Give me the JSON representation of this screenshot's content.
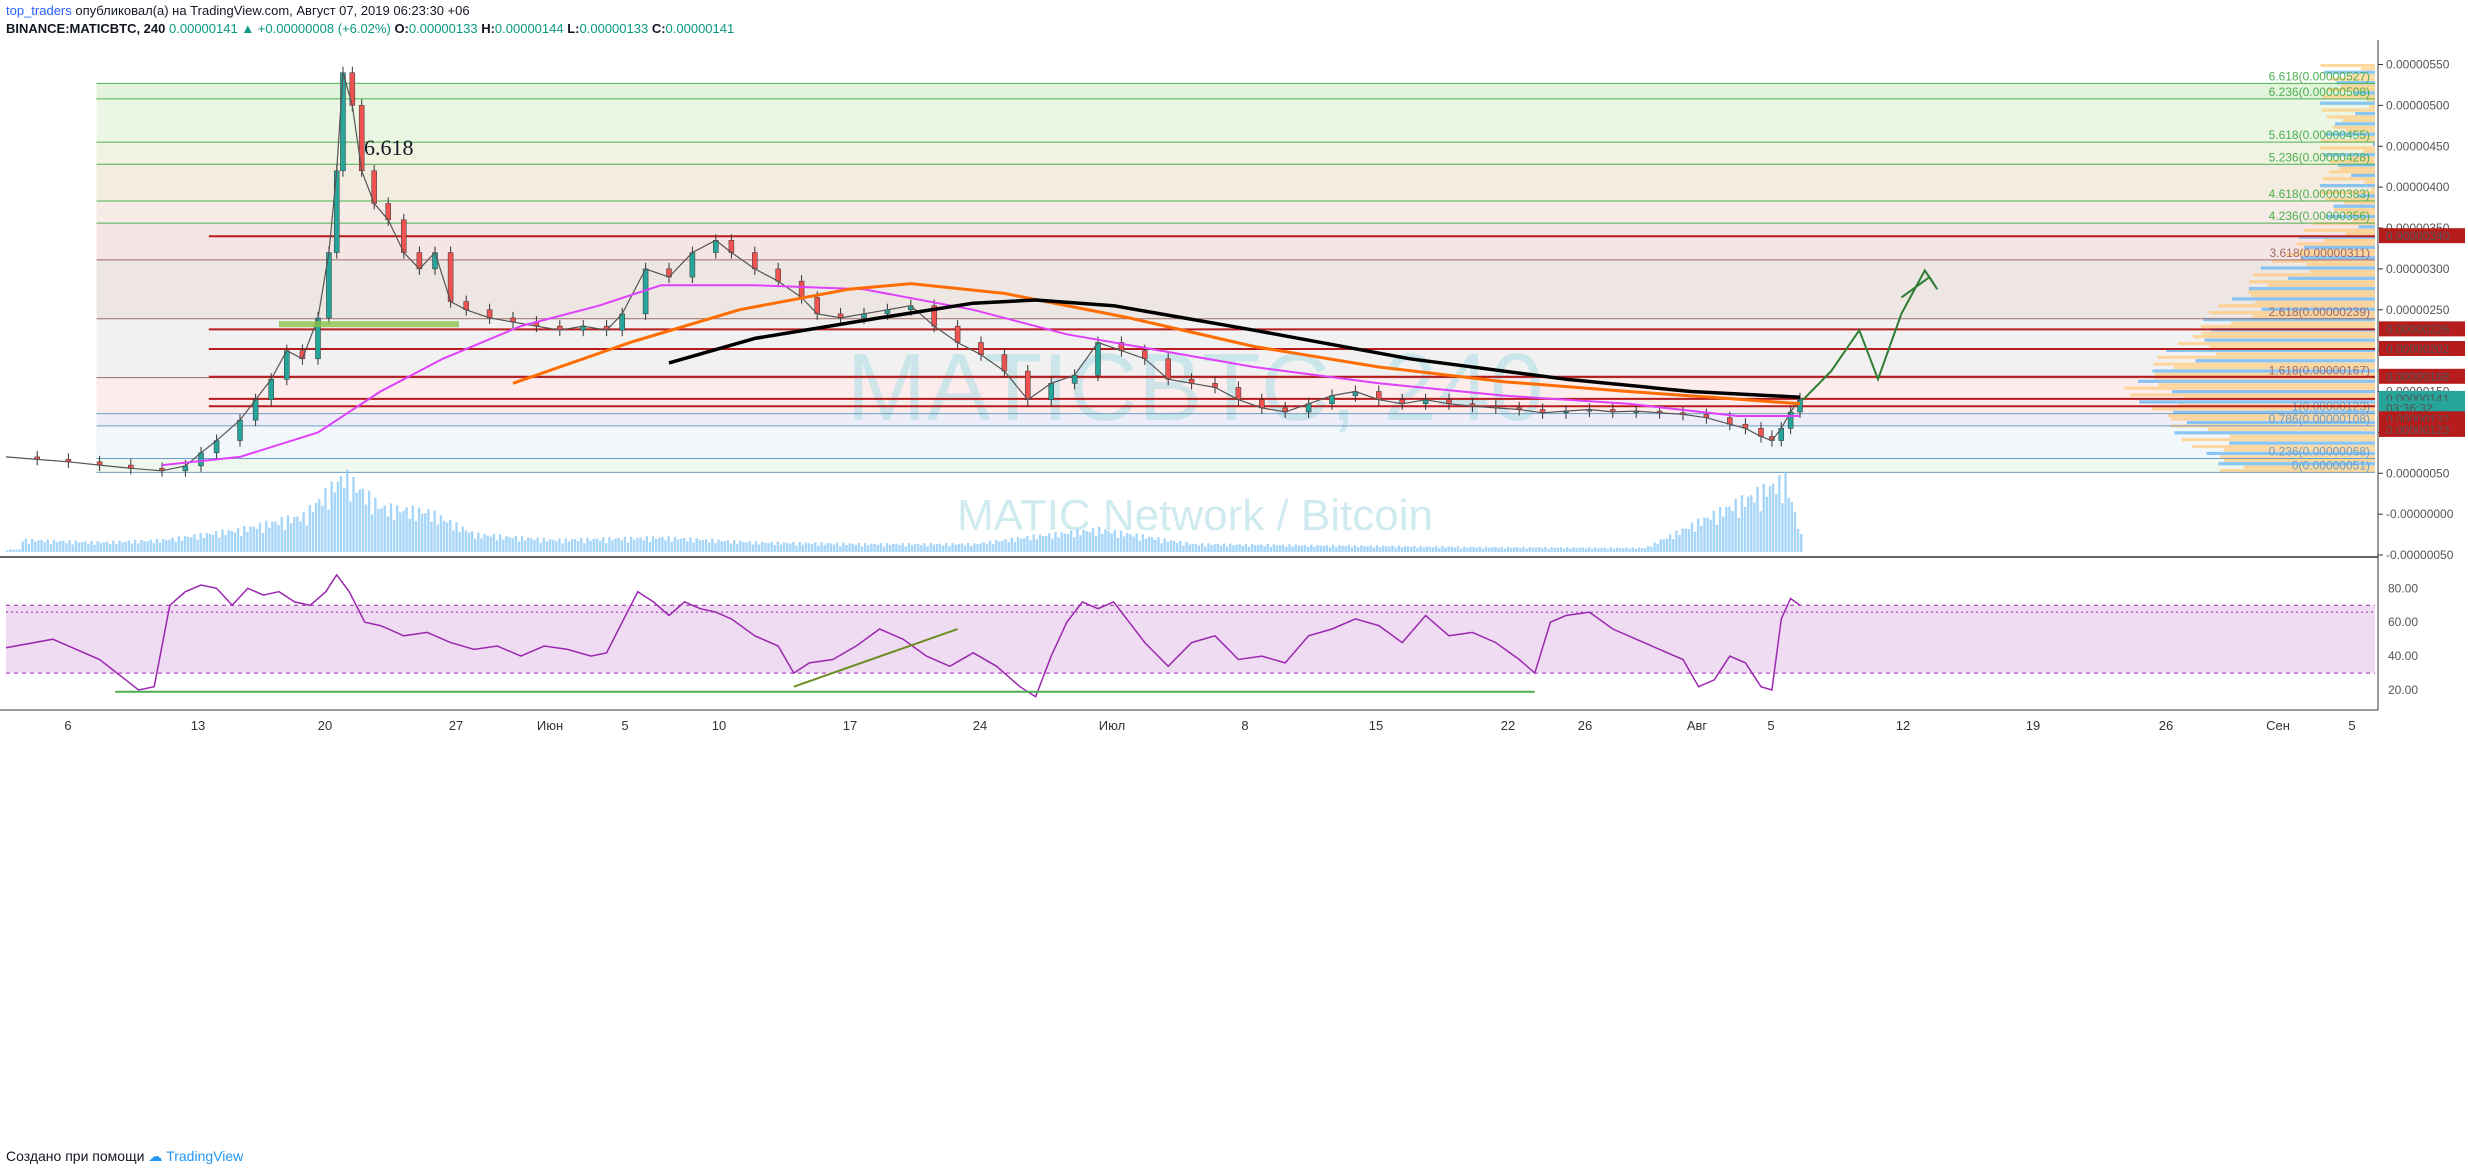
{
  "header": {
    "author": "top_traders",
    "published": "опубликовал(а) на TradingView.com, Август 07, 2019 06:23:30 +06",
    "symbol": "BINANCE:MATICBTC, 240",
    "last": "0.00000141",
    "change": "▲ +0.00000008 (+6.02%)",
    "o_label": "O:",
    "o": "0.00000133",
    "h_label": "H:",
    "h": "0.00000144",
    "l_label": "L:",
    "l": "0.00000133",
    "c_label": "C:",
    "c": "0.00000141"
  },
  "watermark": {
    "title": "MATICBTC, 240",
    "subtitle": "MATIC Network / Bitcoin"
  },
  "footer": {
    "text": "Создано при помощи",
    "brand": "TradingView"
  },
  "colors": {
    "up": "#26a69a",
    "down": "#ef5350",
    "rsi": "#9c27b0",
    "ema_orange": "#ff6d00",
    "ma_magenta": "#e040fb",
    "trend_black": "#000000",
    "fib_green": "#4caf50",
    "level_red": "#b71c1c"
  },
  "chart_data": [
    {
      "type": "line",
      "name": "price",
      "annotation": "6.618",
      "y_axis_ticks": [
        "0.00000550",
        "0.00000500",
        "0.00000450",
        "0.00000400",
        "0.00000350",
        "0.00000300",
        "0.00000250",
        "0.00000200",
        "0.00000150",
        "0.00000100",
        "0.00000050",
        "-0.00000000",
        "-0.00000050"
      ],
      "ylim": [
        -5e-07,
        5.8e-06
      ],
      "x_ticks": [
        "6",
        "13",
        "20",
        "27",
        "Июн",
        "5",
        "10",
        "17",
        "24",
        "Июл",
        "8",
        "15",
        "22",
        "26",
        "Авг",
        "5",
        "12",
        "19",
        "26",
        "Сен",
        "5"
      ],
      "fib_levels": [
        {
          "label": "6.618(0.00000527)",
          "value": 5.27e-06
        },
        {
          "label": "6.236(0.00000508)",
          "value": 5.08e-06
        },
        {
          "label": "5.618(0.00000455)",
          "value": 4.55e-06
        },
        {
          "label": "5.236(0.00000428)",
          "value": 4.28e-06
        },
        {
          "label": "4.618(0.00000383)",
          "value": 3.83e-06
        },
        {
          "label": "4.236(0.00000356)",
          "value": 3.56e-06
        },
        {
          "label": "3.618(0.00000311)",
          "value": 3.11e-06
        },
        {
          "label": "2.618(0.00000239)",
          "value": 2.39e-06
        },
        {
          "label": "1.618(0.00000167)",
          "value": 1.67e-06
        },
        {
          "label": "1(0.00000123)",
          "value": 1.23e-06
        },
        {
          "label": "0.786(0.00000108)",
          "value": 1.08e-06
        },
        {
          "label": "0.236(0.00000068)",
          "value": 6.8e-07
        },
        {
          "label": "0(0.00000051)",
          "value": 5.1e-07
        }
      ],
      "price_labels": [
        {
          "label": "0.00000340",
          "value": 3.4e-06
        },
        {
          "label": "0.00000226",
          "value": 2.26e-06
        },
        {
          "label": "0.00000202",
          "value": 2.02e-06
        },
        {
          "label": "0.00000168",
          "value": 1.68e-06
        },
        {
          "label": "0.00000141",
          "value": 1.41e-06
        },
        {
          "label": "03:36:32",
          "value": 1.29e-06
        },
        {
          "label": "0.00000132",
          "value": 1.16e-06
        },
        {
          "label": "0.00000123",
          "value": 1.03e-06
        }
      ],
      "close_path": [
        [
          0,
          7e-07
        ],
        [
          20,
          6.7e-07
        ],
        [
          40,
          6.4e-07
        ],
        [
          60,
          6e-07
        ],
        [
          80,
          5.6e-07
        ],
        [
          100,
          5.3e-07
        ],
        [
          115,
          5.9e-07
        ],
        [
          125,
          7.5e-07
        ],
        [
          135,
          9e-07
        ],
        [
          150,
          1.15e-06
        ],
        [
          160,
          1.4e-06
        ],
        [
          170,
          1.65e-06
        ],
        [
          180,
          2e-06
        ],
        [
          190,
          1.9e-06
        ],
        [
          200,
          2.4e-06
        ],
        [
          207,
          3.2e-06
        ],
        [
          212,
          4.2e-06
        ],
        [
          216,
          5.4e-06
        ],
        [
          222,
          5e-06
        ],
        [
          228,
          4.2e-06
        ],
        [
          236,
          3.8e-06
        ],
        [
          245,
          3.6e-06
        ],
        [
          255,
          3.2e-06
        ],
        [
          265,
          3e-06
        ],
        [
          275,
          3.2e-06
        ],
        [
          285,
          2.6e-06
        ],
        [
          295,
          2.5e-06
        ],
        [
          310,
          2.4e-06
        ],
        [
          325,
          2.35e-06
        ],
        [
          340,
          2.3e-06
        ],
        [
          355,
          2.25e-06
        ],
        [
          370,
          2.3e-06
        ],
        [
          385,
          2.25e-06
        ],
        [
          395,
          2.45e-06
        ],
        [
          410,
          3e-06
        ],
        [
          425,
          2.9e-06
        ],
        [
          440,
          3.2e-06
        ],
        [
          455,
          3.35e-06
        ],
        [
          465,
          3.2e-06
        ],
        [
          480,
          3e-06
        ],
        [
          495,
          2.85e-06
        ],
        [
          510,
          2.65e-06
        ],
        [
          520,
          2.45e-06
        ],
        [
          535,
          2.4e-06
        ],
        [
          550,
          2.45e-06
        ],
        [
          565,
          2.5e-06
        ],
        [
          580,
          2.55e-06
        ],
        [
          595,
          2.3e-06
        ],
        [
          610,
          2.1e-06
        ],
        [
          625,
          1.95e-06
        ],
        [
          640,
          1.75e-06
        ],
        [
          655,
          1.4e-06
        ],
        [
          670,
          1.6e-06
        ],
        [
          685,
          1.7e-06
        ],
        [
          700,
          2.1e-06
        ],
        [
          715,
          2e-06
        ],
        [
          730,
          1.9e-06
        ],
        [
          745,
          1.65e-06
        ],
        [
          760,
          1.6e-06
        ],
        [
          775,
          1.55e-06
        ],
        [
          790,
          1.4e-06
        ],
        [
          805,
          1.3e-06
        ],
        [
          820,
          1.25e-06
        ],
        [
          835,
          1.35e-06
        ],
        [
          850,
          1.45e-06
        ],
        [
          865,
          1.5e-06
        ],
        [
          880,
          1.4e-06
        ],
        [
          895,
          1.35e-06
        ],
        [
          910,
          1.4e-06
        ],
        [
          925,
          1.35e-06
        ],
        [
          940,
          1.32e-06
        ],
        [
          955,
          1.3e-06
        ],
        [
          970,
          1.28e-06
        ],
        [
          985,
          1.24e-06
        ],
        [
          1000,
          1.26e-06
        ],
        [
          1015,
          1.28e-06
        ],
        [
          1030,
          1.25e-06
        ],
        [
          1045,
          1.26e-06
        ],
        [
          1060,
          1.24e-06
        ],
        [
          1075,
          1.22e-06
        ],
        [
          1090,
          1.18e-06
        ],
        [
          1105,
          1.1e-06
        ],
        [
          1115,
          1.05e-06
        ],
        [
          1125,
          9.5e-07
        ],
        [
          1132,
          9e-07
        ],
        [
          1138,
          1.05e-06
        ],
        [
          1144,
          1.25e-06
        ],
        [
          1150,
          1.41e-06
        ]
      ],
      "orange_ma": [
        [
          325,
          1.6e-06
        ],
        [
          400,
          2.1e-06
        ],
        [
          470,
          2.5e-06
        ],
        [
          540,
          2.75e-06
        ],
        [
          580,
          2.82e-06
        ],
        [
          640,
          2.7e-06
        ],
        [
          720,
          2.4e-06
        ],
        [
          800,
          2.05e-06
        ],
        [
          880,
          1.8e-06
        ],
        [
          960,
          1.62e-06
        ],
        [
          1040,
          1.5e-06
        ],
        [
          1100,
          1.42e-06
        ],
        [
          1150,
          1.35e-06
        ]
      ],
      "black_trend": [
        [
          425,
          1.85e-06
        ],
        [
          480,
          2.15e-06
        ],
        [
          560,
          2.4e-06
        ],
        [
          620,
          2.58e-06
        ],
        [
          660,
          2.62e-06
        ],
        [
          710,
          2.55e-06
        ],
        [
          800,
          2.25e-06
        ],
        [
          900,
          1.9e-06
        ],
        [
          1000,
          1.65e-06
        ],
        [
          1080,
          1.5e-06
        ],
        [
          1150,
          1.43e-06
        ]
      ],
      "magenta_ma": [
        [
          100,
          6e-07
        ],
        [
          150,
          7e-07
        ],
        [
          200,
          1e-06
        ],
        [
          240,
          1.5e-06
        ],
        [
          280,
          1.9e-06
        ],
        [
          330,
          2.3e-06
        ],
        [
          380,
          2.55e-06
        ],
        [
          420,
          2.8e-06
        ],
        [
          480,
          2.8e-06
        ],
        [
          550,
          2.75e-06
        ],
        [
          620,
          2.5e-06
        ],
        [
          680,
          2.2e-06
        ],
        [
          740,
          2e-06
        ],
        [
          800,
          1.8e-06
        ],
        [
          880,
          1.6e-06
        ],
        [
          960,
          1.45e-06
        ],
        [
          1040,
          1.35e-06
        ],
        [
          1110,
          1.2e-06
        ],
        [
          1150,
          1.2e-06
        ]
      ],
      "projection": [
        [
          1152,
          1.4e-06
        ],
        [
          1170,
          1.75e-06
        ],
        [
          1188,
          2.25e-06
        ],
        [
          1200,
          1.65e-06
        ],
        [
          1215,
          2.45e-06
        ],
        [
          1230,
          2.98e-06
        ],
        [
          1238,
          2.75e-06
        ],
        [
          1233,
          2.9e-06
        ],
        [
          1215,
          2.65e-06
        ]
      ]
    },
    {
      "type": "line",
      "name": "RSI",
      "ylim": [
        10,
        92
      ],
      "y_axis_ticks": [
        "80.00",
        "60.00",
        "40.00",
        "20.00"
      ],
      "series": [
        [
          0,
          45
        ],
        [
          30,
          50
        ],
        [
          60,
          38
        ],
        [
          85,
          20
        ],
        [
          95,
          22
        ],
        [
          105,
          70
        ],
        [
          115,
          78
        ],
        [
          125,
          82
        ],
        [
          135,
          80
        ],
        [
          145,
          70
        ],
        [
          155,
          80
        ],
        [
          165,
          76
        ],
        [
          175,
          78
        ],
        [
          185,
          72
        ],
        [
          195,
          70
        ],
        [
          205,
          78
        ],
        [
          212,
          88
        ],
        [
          220,
          78
        ],
        [
          230,
          60
        ],
        [
          240,
          58
        ],
        [
          255,
          52
        ],
        [
          270,
          54
        ],
        [
          285,
          48
        ],
        [
          300,
          44
        ],
        [
          315,
          46
        ],
        [
          330,
          40
        ],
        [
          345,
          46
        ],
        [
          360,
          44
        ],
        [
          375,
          40
        ],
        [
          385,
          42
        ],
        [
          395,
          60
        ],
        [
          405,
          78
        ],
        [
          415,
          72
        ],
        [
          425,
          64
        ],
        [
          435,
          72
        ],
        [
          445,
          68
        ],
        [
          455,
          66
        ],
        [
          465,
          62
        ],
        [
          480,
          52
        ],
        [
          495,
          46
        ],
        [
          505,
          30
        ],
        [
          515,
          36
        ],
        [
          530,
          38
        ],
        [
          545,
          46
        ],
        [
          560,
          56
        ],
        [
          575,
          50
        ],
        [
          590,
          40
        ],
        [
          605,
          34
        ],
        [
          620,
          42
        ],
        [
          635,
          34
        ],
        [
          650,
          22
        ],
        [
          660,
          16
        ],
        [
          670,
          40
        ],
        [
          680,
          60
        ],
        [
          690,
          72
        ],
        [
          700,
          68
        ],
        [
          710,
          72
        ],
        [
          720,
          60
        ],
        [
          730,
          48
        ],
        [
          745,
          34
        ],
        [
          760,
          48
        ],
        [
          775,
          52
        ],
        [
          790,
          38
        ],
        [
          805,
          40
        ],
        [
          820,
          36
        ],
        [
          835,
          52
        ],
        [
          850,
          56
        ],
        [
          865,
          62
        ],
        [
          880,
          58
        ],
        [
          895,
          48
        ],
        [
          910,
          64
        ],
        [
          925,
          52
        ],
        [
          940,
          54
        ],
        [
          955,
          48
        ],
        [
          970,
          38
        ],
        [
          980,
          30
        ],
        [
          990,
          60
        ],
        [
          1000,
          64
        ],
        [
          1015,
          66
        ],
        [
          1030,
          56
        ],
        [
          1045,
          50
        ],
        [
          1060,
          44
        ],
        [
          1075,
          38
        ],
        [
          1085,
          22
        ],
        [
          1095,
          26
        ],
        [
          1105,
          40
        ],
        [
          1115,
          36
        ],
        [
          1125,
          22
        ],
        [
          1132,
          20
        ],
        [
          1138,
          62
        ],
        [
          1144,
          74
        ],
        [
          1150,
          70
        ]
      ],
      "support_line": [
        [
          70,
          19
        ],
        [
          980,
          19
        ]
      ],
      "rising_trendline": [
        [
          505,
          22
        ],
        [
          610,
          56
        ]
      ]
    },
    {
      "type": "bar",
      "name": "volume",
      "peaks": [
        [
          10,
          0.15
        ],
        [
          60,
          0.12
        ],
        [
          100,
          0.15
        ],
        [
          150,
          0.28
        ],
        [
          190,
          0.45
        ],
        [
          216,
          0.95
        ],
        [
          240,
          0.55
        ],
        [
          270,
          0.5
        ],
        [
          300,
          0.22
        ],
        [
          350,
          0.15
        ],
        [
          420,
          0.18
        ],
        [
          480,
          0.12
        ],
        [
          550,
          0.1
        ],
        [
          620,
          0.1
        ],
        [
          660,
          0.2
        ],
        [
          700,
          0.28
        ],
        [
          760,
          0.1
        ],
        [
          850,
          0.08
        ],
        [
          950,
          0.06
        ],
        [
          1050,
          0.05
        ],
        [
          1140,
          0.9
        ],
        [
          1150,
          0.2
        ]
      ]
    }
  ]
}
